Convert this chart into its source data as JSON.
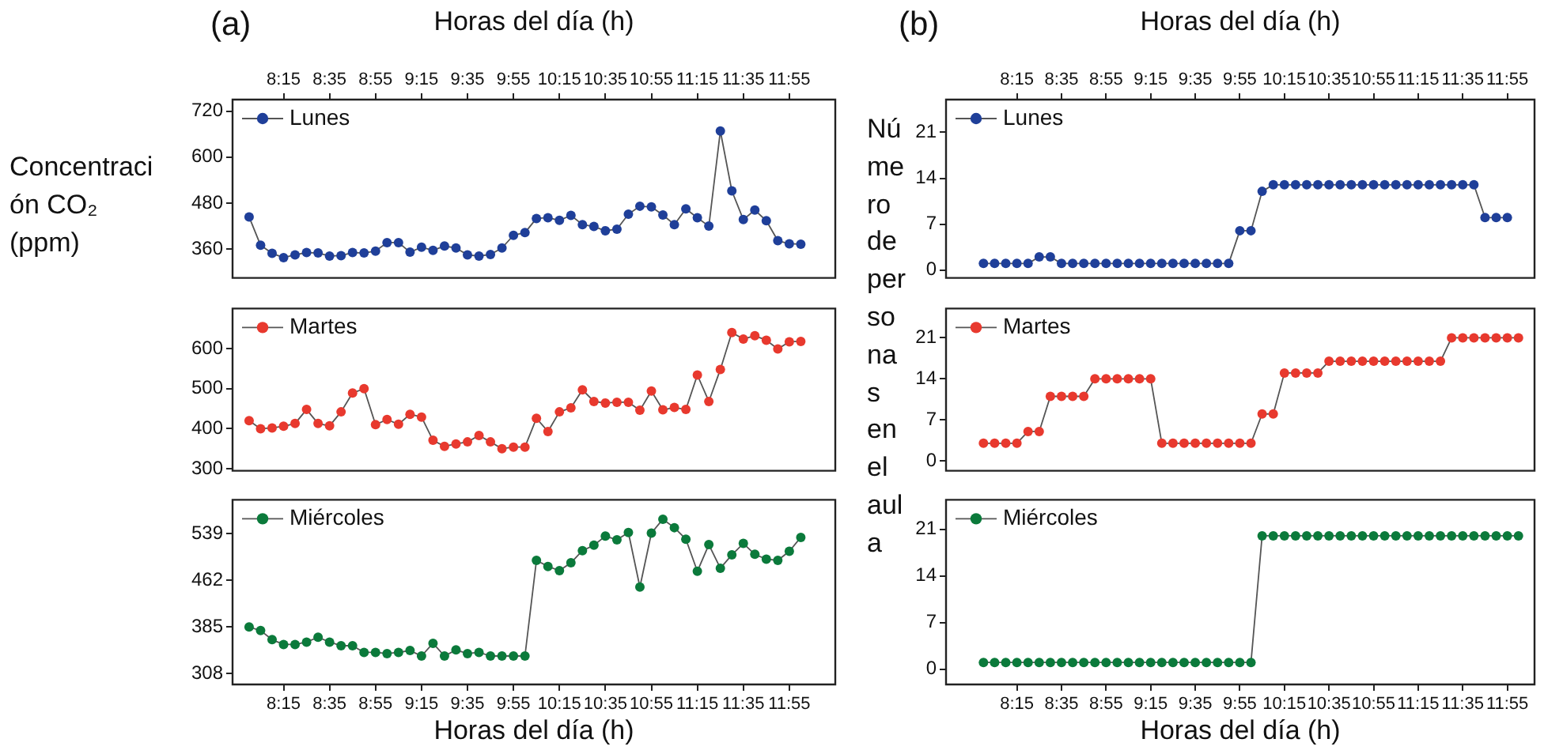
{
  "chart_data": [
    {
      "type": "line",
      "title": "(a)",
      "ylabel": "Concentración CO₂ (ppm)",
      "x2label": "Horas del día (h)",
      "legend": "top left",
      "marker": "circle",
      "tick_labels": "y",
      "x": [
        8,
        8.0833,
        8.1667,
        8.25,
        8.3333,
        8.4167,
        8.5,
        8.5833,
        8.6667,
        8.75,
        8.8333,
        8.9167,
        9,
        9.0833,
        9.1667,
        9.25,
        9.3333,
        9.4167,
        9.5,
        9.5833,
        9.6667,
        9.75,
        9.8333,
        9.9167,
        10,
        10.0833,
        10.1667,
        10.25,
        10.3333,
        10.4167,
        10.5,
        10.5833,
        10.6667,
        10.75,
        10.8333,
        10.9167,
        11,
        11.0833,
        11.1667,
        11.25,
        11.3333,
        11.4167,
        11.5,
        11.5833,
        11.6667,
        11.75,
        11.8333,
        11.9167,
        12
      ],
      "xlim": [
        7.88,
        12.25
      ],
      "x2lim": [
        7.88,
        12.25
      ],
      "x2ticks": [
        {
          "value": 8.25,
          "label": "8:15"
        },
        {
          "value": 8.5833,
          "label": "8:35"
        },
        {
          "value": 8.9167,
          "label": "8:55"
        },
        {
          "value": 9.25,
          "label": "9:15"
        },
        {
          "value": 9.5833,
          "label": "9:35"
        },
        {
          "value": 9.9167,
          "label": "9:55"
        },
        {
          "value": 10.25,
          "label": "10:15"
        },
        {
          "value": 10.5833,
          "label": "10:35"
        },
        {
          "value": 10.9167,
          "label": "10:55"
        },
        {
          "value": 11.25,
          "label": "11:15"
        },
        {
          "value": 11.5833,
          "label": "11:35"
        },
        {
          "value": 11.9167,
          "label": "11:55"
        }
      ],
      "ylim": [
        285,
        750
      ],
      "yticks": [
        360,
        480,
        600,
        720
      ],
      "series": [
        {
          "name": "Lunes",
          "color": "#1f3f99",
          "values": [
            444,
            370,
            349,
            338,
            345,
            351,
            350,
            342,
            343,
            351,
            350,
            355,
            377,
            377,
            352,
            365,
            357,
            368,
            363,
            345,
            342,
            346,
            363,
            396,
            403,
            440,
            442,
            435,
            448,
            424,
            419,
            408,
            412,
            451,
            472,
            470,
            449,
            424,
            465,
            442,
            420,
            668,
            512,
            437,
            462,
            434,
            382,
            374,
            373
          ]
        }
      ]
    },
    {
      "type": "line",
      "legend": "top left",
      "marker": "circle",
      "tick_labels": "y",
      "x": [
        8,
        8.0833,
        8.1667,
        8.25,
        8.3333,
        8.4167,
        8.5,
        8.5833,
        8.6667,
        8.75,
        8.8333,
        8.9167,
        9,
        9.0833,
        9.1667,
        9.25,
        9.3333,
        9.4167,
        9.5,
        9.5833,
        9.6667,
        9.75,
        9.8333,
        9.9167,
        10,
        10.0833,
        10.1667,
        10.25,
        10.3333,
        10.4167,
        10.5,
        10.5833,
        10.6667,
        10.75,
        10.8333,
        10.9167,
        11,
        11.0833,
        11.1667,
        11.25,
        11.3333,
        11.4167,
        11.5,
        11.5833,
        11.6667,
        11.75,
        11.8333,
        11.9167,
        12
      ],
      "xlim": [
        7.88,
        12.25
      ],
      "ylim": [
        295,
        700
      ],
      "yticks": [
        300,
        400,
        500,
        600
      ],
      "series": [
        {
          "name": "Martes",
          "color": "#e8392e",
          "values": [
            420,
            400,
            402,
            406,
            413,
            448,
            413,
            407,
            442,
            489,
            500,
            410,
            423,
            411,
            436,
            429,
            371,
            356,
            362,
            367,
            383,
            367,
            350,
            354,
            354,
            426,
            393,
            442,
            452,
            497,
            468,
            464,
            466,
            466,
            446,
            494,
            447,
            453,
            448,
            534,
            468,
            548,
            640,
            624,
            632,
            621,
            599,
            617,
            618
          ]
        }
      ]
    },
    {
      "type": "line",
      "xlabel": "Horas del día (h)",
      "legend": "top left",
      "marker": "circle",
      "x": [
        8,
        8.0833,
        8.1667,
        8.25,
        8.3333,
        8.4167,
        8.5,
        8.5833,
        8.6667,
        8.75,
        8.8333,
        8.9167,
        9,
        9.0833,
        9.1667,
        9.25,
        9.3333,
        9.4167,
        9.5,
        9.5833,
        9.6667,
        9.75,
        9.8333,
        9.9167,
        10,
        10.0833,
        10.1667,
        10.25,
        10.3333,
        10.4167,
        10.5,
        10.5833,
        10.6667,
        10.75,
        10.8333,
        10.9167,
        11,
        11.0833,
        11.1667,
        11.25,
        11.3333,
        11.4167,
        11.5,
        11.5833,
        11.6667,
        11.75,
        11.8333,
        11.9167,
        12
      ],
      "xlim": [
        7.88,
        12.25
      ],
      "xticks": [
        {
          "value": 8.25,
          "label": "8:15"
        },
        {
          "value": 8.5833,
          "label": "8:35"
        },
        {
          "value": 8.9167,
          "label": "8:55"
        },
        {
          "value": 9.25,
          "label": "9:15"
        },
        {
          "value": 9.5833,
          "label": "9:35"
        },
        {
          "value": 9.9167,
          "label": "9:55"
        },
        {
          "value": 10.25,
          "label": "10:15"
        },
        {
          "value": 10.5833,
          "label": "10:35"
        },
        {
          "value": 10.9167,
          "label": "10:55"
        },
        {
          "value": 11.25,
          "label": "11:15"
        },
        {
          "value": 11.5833,
          "label": "11:35"
        },
        {
          "value": 11.9167,
          "label": "11:55"
        }
      ],
      "ylim": [
        290,
        595
      ],
      "yticks": [
        308,
        385,
        462,
        539
      ],
      "series": [
        {
          "name": "Miércoles",
          "color": "#0b7a3b",
          "values": [
            385,
            379,
            364,
            356,
            356,
            360,
            368,
            360,
            354,
            354,
            343,
            343,
            341,
            343,
            346,
            337,
            358,
            337,
            347,
            341,
            343,
            337,
            337,
            337,
            337,
            495,
            485,
            478,
            491,
            511,
            520,
            535,
            529,
            541,
            451,
            540,
            563,
            549,
            530,
            477,
            521,
            482,
            504,
            523,
            505,
            497,
            495,
            510,
            533
          ]
        }
      ]
    },
    {
      "type": "line",
      "title": "(b)",
      "ylabel": "Número de personas en el aula",
      "x2label": "Horas del día (h)",
      "legend": "top left",
      "marker": "circle",
      "tick_labels": "y",
      "x": [
        8,
        8.0833,
        8.1667,
        8.25,
        8.3333,
        8.4167,
        8.5,
        8.5833,
        8.6667,
        8.75,
        8.8333,
        8.9167,
        9,
        9.0833,
        9.1667,
        9.25,
        9.3333,
        9.4167,
        9.5,
        9.5833,
        9.6667,
        9.75,
        9.8333,
        9.9167,
        10,
        10.0833,
        10.1667,
        10.25,
        10.3333,
        10.4167,
        10.5,
        10.5833,
        10.6667,
        10.75,
        10.8333,
        10.9167,
        11,
        11.0833,
        11.1667,
        11.25,
        11.3333,
        11.4167,
        11.5,
        11.5833,
        11.6667,
        11.75,
        11.8333,
        11.9167
      ],
      "xlim": [
        7.72,
        12.12
      ],
      "x2lim": [
        7.72,
        12.12
      ],
      "x2ticks": [
        {
          "value": 8.25,
          "label": "8:15"
        },
        {
          "value": 8.5833,
          "label": "8:35"
        },
        {
          "value": 8.9167,
          "label": "8:55"
        },
        {
          "value": 9.25,
          "label": "9:15"
        },
        {
          "value": 9.5833,
          "label": "9:35"
        },
        {
          "value": 9.9167,
          "label": "9:55"
        },
        {
          "value": 10.25,
          "label": "10:15"
        },
        {
          "value": 10.5833,
          "label": "10:35"
        },
        {
          "value": 10.9167,
          "label": "10:55"
        },
        {
          "value": 11.25,
          "label": "11:15"
        },
        {
          "value": 11.5833,
          "label": "11:35"
        },
        {
          "value": 11.9167,
          "label": "11:55"
        }
      ],
      "ylim": [
        -1.2,
        26
      ],
      "yticks": [
        0,
        7,
        14,
        21
      ],
      "series": [
        {
          "name": "Lunes",
          "color": "#1f3f99",
          "values": [
            1,
            1,
            1,
            1,
            1,
            2,
            2,
            1,
            1,
            1,
            1,
            1,
            1,
            1,
            1,
            1,
            1,
            1,
            1,
            1,
            1,
            1,
            1,
            6,
            6,
            12,
            13,
            13,
            13,
            13,
            13,
            13,
            13,
            13,
            13,
            13,
            13,
            13,
            13,
            13,
            13,
            13,
            13,
            13,
            13,
            8,
            8,
            8
          ]
        }
      ]
    },
    {
      "type": "line",
      "legend": "top left",
      "marker": "circle",
      "tick_labels": "y",
      "x": [
        8,
        8.0833,
        8.1667,
        8.25,
        8.3333,
        8.4167,
        8.5,
        8.5833,
        8.6667,
        8.75,
        8.8333,
        8.9167,
        9,
        9.0833,
        9.1667,
        9.25,
        9.3333,
        9.4167,
        9.5,
        9.5833,
        9.6667,
        9.75,
        9.8333,
        9.9167,
        10,
        10.0833,
        10.1667,
        10.25,
        10.3333,
        10.4167,
        10.5,
        10.5833,
        10.6667,
        10.75,
        10.8333,
        10.9167,
        11,
        11.0833,
        11.1667,
        11.25,
        11.3333,
        11.4167,
        11.5,
        11.5833,
        11.6667,
        11.75,
        11.8333,
        11.9167,
        12
      ],
      "xlim": [
        7.72,
        12.12
      ],
      "ylim": [
        -1.7,
        26
      ],
      "yticks": [
        0,
        7,
        14,
        21
      ],
      "series": [
        {
          "name": "Martes",
          "color": "#e8392e",
          "values": [
            3,
            3,
            3,
            3,
            5,
            5,
            11,
            11,
            11,
            11,
            14,
            14,
            14,
            14,
            14,
            14,
            3,
            3,
            3,
            3,
            3,
            3,
            3,
            3,
            3,
            8,
            8,
            15,
            15,
            15,
            15,
            17,
            17,
            17,
            17,
            17,
            17,
            17,
            17,
            17,
            17,
            17,
            21,
            21,
            21,
            21,
            21,
            21,
            21
          ]
        }
      ]
    },
    {
      "type": "line",
      "xlabel": "Horas del día (h)",
      "legend": "top left",
      "marker": "circle",
      "x": [
        8,
        8.0833,
        8.1667,
        8.25,
        8.3333,
        8.4167,
        8.5,
        8.5833,
        8.6667,
        8.75,
        8.8333,
        8.9167,
        9,
        9.0833,
        9.1667,
        9.25,
        9.3333,
        9.4167,
        9.5,
        9.5833,
        9.6667,
        9.75,
        9.8333,
        9.9167,
        10,
        10.0833,
        10.1667,
        10.25,
        10.3333,
        10.4167,
        10.5,
        10.5833,
        10.6667,
        10.75,
        10.8333,
        10.9167,
        11,
        11.0833,
        11.1667,
        11.25,
        11.3333,
        11.4167,
        11.5,
        11.5833,
        11.6667,
        11.75,
        11.8333,
        11.9167,
        12
      ],
      "xlim": [
        7.72,
        12.12
      ],
      "xticks": [
        {
          "value": 8.25,
          "label": "8:15"
        },
        {
          "value": 8.5833,
          "label": "8:35"
        },
        {
          "value": 8.9167,
          "label": "8:55"
        },
        {
          "value": 9.25,
          "label": "9:15"
        },
        {
          "value": 9.5833,
          "label": "9:35"
        },
        {
          "value": 9.9167,
          "label": "9:55"
        },
        {
          "value": 10.25,
          "label": "10:15"
        },
        {
          "value": 10.5833,
          "label": "10:35"
        },
        {
          "value": 10.9167,
          "label": "10:55"
        },
        {
          "value": 11.25,
          "label": "11:15"
        },
        {
          "value": 11.5833,
          "label": "11:35"
        },
        {
          "value": 11.9167,
          "label": "11:55"
        }
      ],
      "ylim": [
        -2.3,
        25.4
      ],
      "yticks": [
        0,
        7,
        14,
        21
      ],
      "series": [
        {
          "name": "Miércoles",
          "color": "#0b7a3b",
          "values": [
            1,
            1,
            1,
            1,
            1,
            1,
            1,
            1,
            1,
            1,
            1,
            1,
            1,
            1,
            1,
            1,
            1,
            1,
            1,
            1,
            1,
            1,
            1,
            1,
            1,
            20,
            20,
            20,
            20,
            20,
            20,
            20,
            20,
            20,
            20,
            20,
            20,
            20,
            20,
            20,
            20,
            20,
            20,
            20,
            20,
            20,
            20,
            20,
            20
          ]
        }
      ]
    }
  ]
}
